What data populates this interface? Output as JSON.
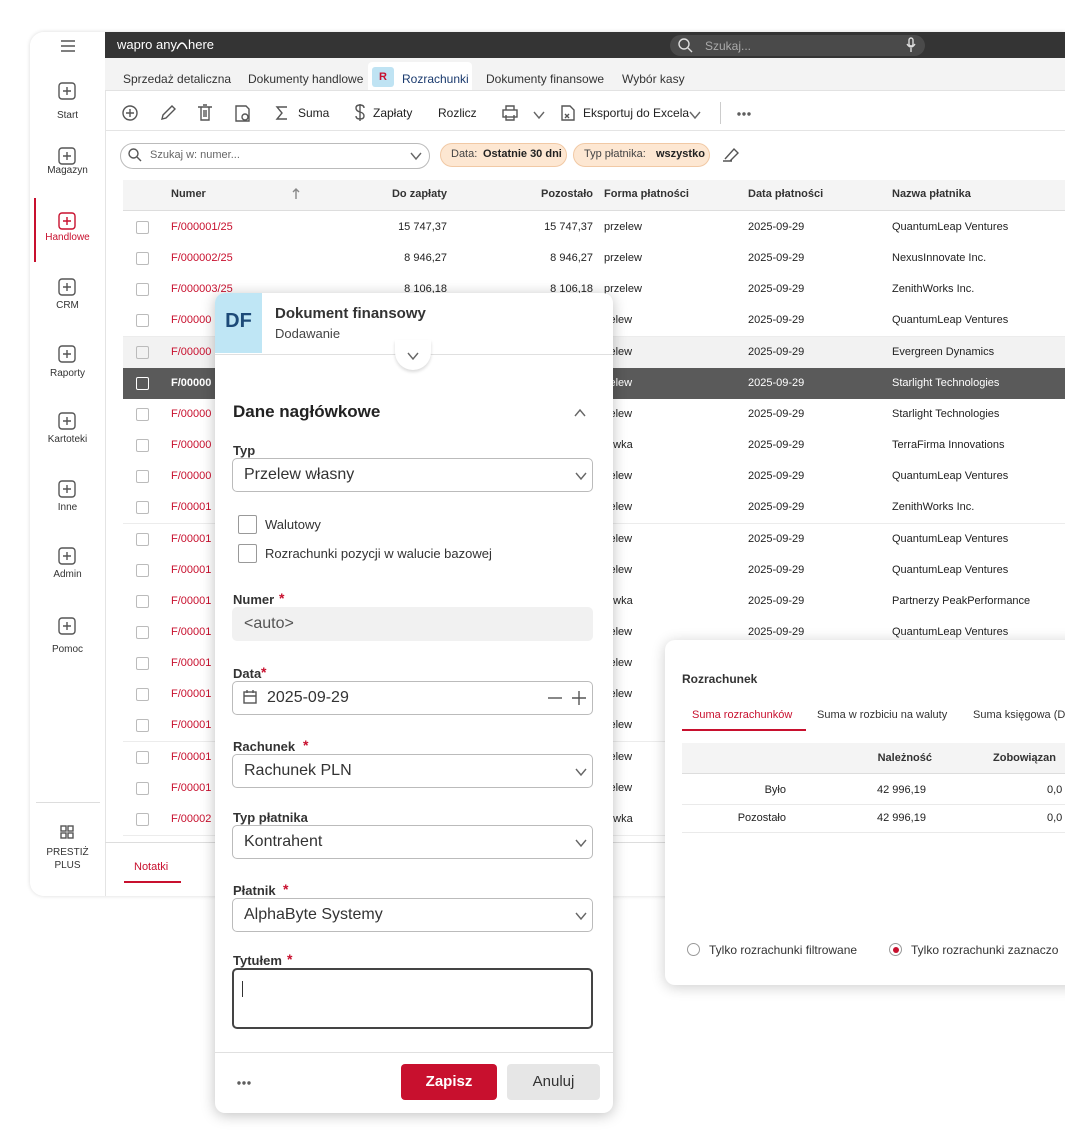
{
  "sidebar": {
    "items": [
      "Start",
      "Magazyn",
      "Handlowe",
      "CRM",
      "Raporty",
      "Kartoteki",
      "Inne",
      "Admin",
      "Pomoc"
    ],
    "active": 2,
    "footer": [
      "PRESTIŻ",
      "PLUS"
    ]
  },
  "topbar": {
    "brand": [
      "wapro any",
      "here"
    ],
    "search_placeholder": "Szukaj..."
  },
  "tabs": {
    "items": [
      "Sprzedaż detaliczna",
      "Dokumenty handlowe",
      "Rozrachunki",
      "Dokumenty finansowe",
      "Wybór kasy"
    ],
    "active": 2,
    "badge": "R"
  },
  "toolbar": {
    "items": [
      "Suma",
      "Zapłaty",
      "Rozlicz",
      "Eksportuj do Excela"
    ]
  },
  "filters": {
    "search_placeholder": "Szukaj w: numer...",
    "chips": [
      {
        "label": "Data:",
        "value": "Ostatnie 30 dni"
      },
      {
        "label": "Typ płatnika:",
        "value": "wszystko"
      }
    ]
  },
  "table": {
    "columns": [
      "Numer",
      "Do zapłaty",
      "Pozostało",
      "Forma płatności",
      "Data płatności",
      "Nazwa płatnika"
    ],
    "selected_row": 5,
    "rows": [
      [
        "F/000001/25",
        "15 747,37",
        "15 747,37",
        "przelew",
        "2025-09-29",
        "QuantumLeap Ventures"
      ],
      [
        "F/000002/25",
        "8 946,27",
        "8 946,27",
        "przelew",
        "2025-09-29",
        "NexusInnovate Inc."
      ],
      [
        "F/000003/25",
        "8 106,18",
        "8 106,18",
        "przelew",
        "2025-09-29",
        "ZenithWorks Inc."
      ],
      [
        "F/00000",
        null,
        null,
        "zelew",
        "2025-09-29",
        "QuantumLeap Ventures"
      ],
      [
        "F/00000",
        null,
        null,
        "zelew",
        "2025-09-29",
        "Evergreen Dynamics"
      ],
      [
        "F/00000",
        null,
        null,
        "zelew",
        "2025-09-29",
        "Starlight Technologies"
      ],
      [
        "F/00000",
        null,
        null,
        "zelew",
        "2025-09-29",
        "Starlight Technologies"
      ],
      [
        "F/00000",
        null,
        null,
        "tówka",
        "2025-09-29",
        "TerraFirma Innovations"
      ],
      [
        "F/00000",
        null,
        null,
        "zelew",
        "2025-09-29",
        "QuantumLeap Ventures"
      ],
      [
        "F/00001",
        null,
        null,
        "zelew",
        "2025-09-29",
        "ZenithWorks Inc."
      ],
      [
        "F/00001",
        null,
        null,
        "zelew",
        "2025-09-29",
        "QuantumLeap Ventures"
      ],
      [
        "F/00001",
        null,
        null,
        "zelew",
        "2025-09-29",
        "QuantumLeap Ventures"
      ],
      [
        "F/00001",
        null,
        null,
        "tówka",
        "2025-09-29",
        "Partnerzy PeakPerformance"
      ],
      [
        "F/00001",
        null,
        null,
        "zelew",
        "2025-09-29",
        "QuantumLeap Ventures"
      ],
      [
        "F/00001",
        null,
        null,
        "zelew",
        null,
        null
      ],
      [
        "F/00001",
        null,
        null,
        "zelew",
        null,
        null
      ],
      [
        "F/00001",
        null,
        null,
        "zelew",
        null,
        null
      ],
      [
        "F/00001",
        null,
        null,
        "zelew",
        null,
        null
      ],
      [
        "F/00001",
        null,
        null,
        "zelew",
        null,
        null
      ],
      [
        "F/00002",
        null,
        null,
        "tówka",
        null,
        null
      ]
    ]
  },
  "bottom_tabs": [
    "Notatki"
  ],
  "dialog": {
    "badge": "DF",
    "title": "Dokument finansowy",
    "subtitle": "Dodawanie",
    "section": "Dane nagłówkowe",
    "fields": [
      {
        "label": "Typ",
        "kind": "select",
        "value": "Przelew własny"
      },
      {
        "label": "Numer",
        "required": "*",
        "kind": "readonly",
        "value": "<auto>"
      },
      {
        "label": "Data",
        "required": "*",
        "kind": "date",
        "value": "2025-09-29"
      },
      {
        "label": "Rachunek",
        "required": "*",
        "kind": "select",
        "value": "Rachunek PLN"
      },
      {
        "label": "Typ płatnika",
        "kind": "select",
        "value": "Kontrahent"
      },
      {
        "label": "Płatnik",
        "required": "*",
        "kind": "select",
        "value": "AlphaByte Systemy"
      },
      {
        "label": "Tytułem",
        "required": "*",
        "kind": "textarea"
      }
    ],
    "checkboxes": [
      "Walutowy",
      "Rozrachunki pozycji w walucie bazowej"
    ],
    "buttons": [
      "Zapisz",
      "Anuluj"
    ]
  },
  "summary_panel": {
    "title": "Rozrachunek",
    "tabs": [
      "Suma rozrachunków",
      "Suma w rozbiciu na waluty",
      "Suma księgowa (D"
    ],
    "active_tab": 0,
    "columns": [
      "Należność",
      "Zobowiązan"
    ],
    "rows": [
      [
        "Było",
        "42 996,19",
        "0,0"
      ],
      [
        "Pozostało",
        "42 996,19",
        "0,0"
      ]
    ],
    "radios": [
      "Tylko rozrachunki filtrowane",
      "Tylko rozrachunki zaznaczo"
    ],
    "selected_radio": 1
  }
}
